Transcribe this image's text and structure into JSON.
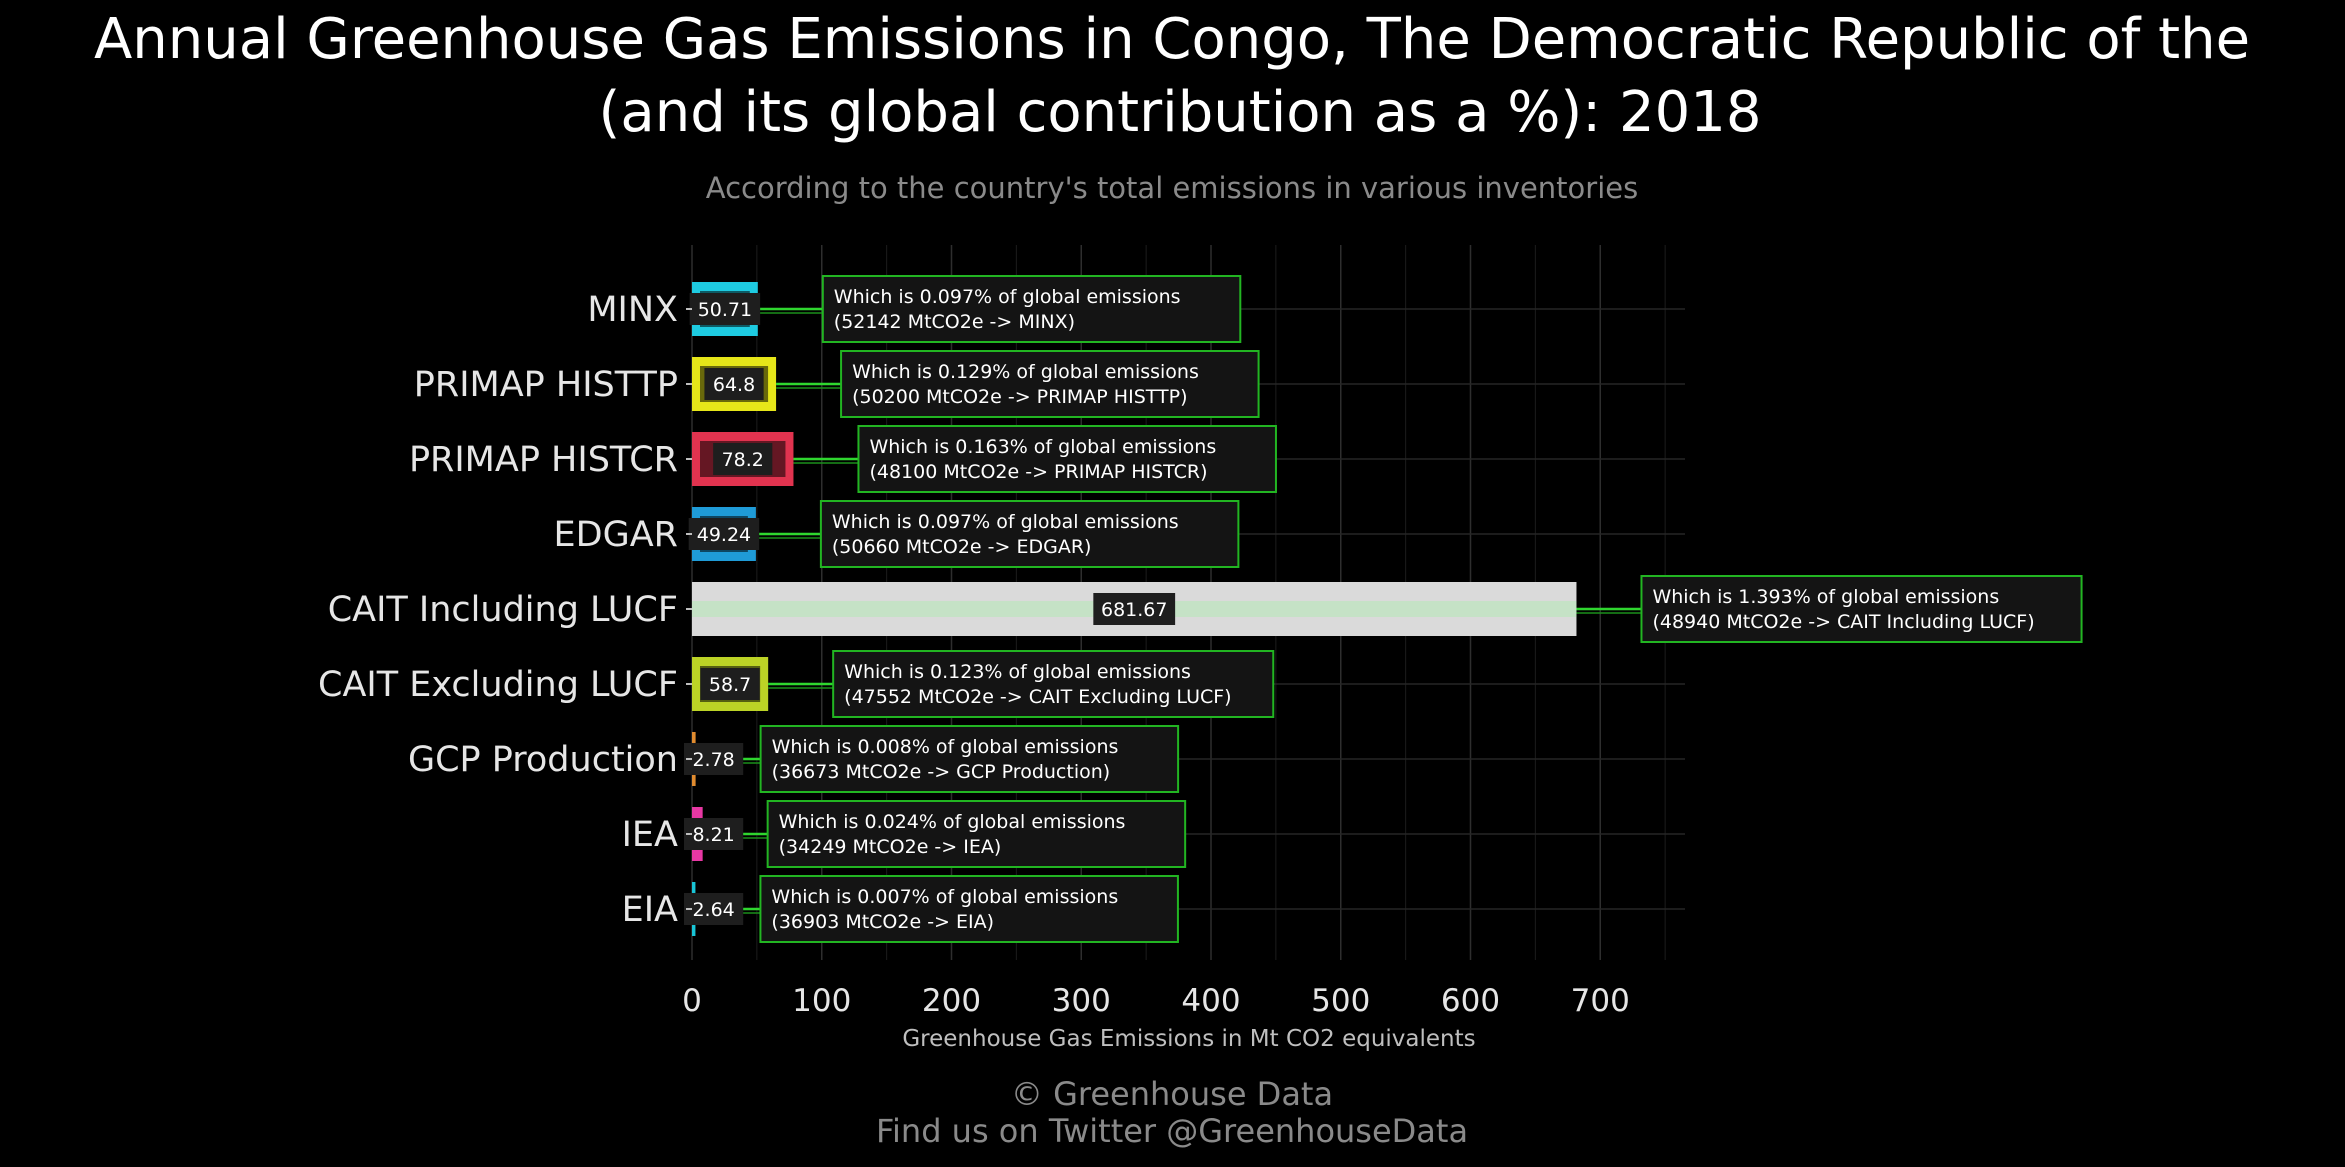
{
  "chart_data": {
    "type": "bar",
    "orientation": "horizontal",
    "title_lines": [
      "Annual Greenhouse Gas Emissions in Congo, The Democratic Republic of the",
      "(and its global contribution as a %): 2018"
    ],
    "subtitle": "According to the country's total emissions in various inventories",
    "xlabel": "Greenhouse Gas Emissions in Mt CO2 equivalents",
    "ylabel": "",
    "xlim": [
      0,
      765
    ],
    "xticks": [
      0,
      100,
      200,
      300,
      400,
      500,
      600,
      700
    ],
    "grid": true,
    "categories": [
      "MINX",
      "PRIMAP HISTTP",
      "PRIMAP HISTCR",
      "EDGAR",
      "CAIT Including LUCF",
      "CAIT Excluding LUCF",
      "GCP Production",
      "IEA",
      "EIA"
    ],
    "values": [
      50.71,
      64.8,
      78.2,
      49.24,
      681.67,
      58.7,
      2.78,
      8.21,
      2.64
    ],
    "value_labels": [
      "50.71",
      "64.8",
      "78.2",
      "49.24",
      "681.67",
      "58.7",
      "2.78",
      "8.21",
      "2.64"
    ],
    "colors": [
      "#1ecbe1",
      "#e6e619",
      "#e1334f",
      "#1f9bd7",
      "#dadada",
      "#bcd326",
      "#e08b2f",
      "#e838a4",
      "#19c5d6"
    ],
    "annotations": [
      {
        "line1": "Which is 0.097% of global emissions",
        "line2": "(52142 MtCO2e -> MINX)"
      },
      {
        "line1": "Which is 0.129% of global emissions",
        "line2": "(50200 MtCO2e -> PRIMAP HISTTP)"
      },
      {
        "line1": "Which is 0.163% of global emissions",
        "line2": "(48100 MtCO2e -> PRIMAP HISTCR)"
      },
      {
        "line1": "Which is 0.097% of global emissions",
        "line2": "(50660 MtCO2e -> EDGAR)"
      },
      {
        "line1": "Which is 1.393% of global emissions",
        "line2": "(48940 MtCO2e -> CAIT Including LUCF)"
      },
      {
        "line1": "Which is 0.123% of global emissions",
        "line2": "(47552 MtCO2e -> CAIT Excluding LUCF)"
      },
      {
        "line1": "Which is 0.008% of global emissions",
        "line2": "(36673 MtCO2e -> GCP Production)"
      },
      {
        "line1": "Which is 0.024% of global emissions",
        "line2": "(34249 MtCO2e -> IEA)"
      },
      {
        "line1": "Which is 0.007% of global emissions",
        "line2": "(36903 MtCO2e -> EIA)"
      }
    ]
  },
  "footer": {
    "line1": "© Greenhouse Data",
    "line2": "Find us on Twitter @GreenhouseData"
  },
  "colors": {
    "background": "#000000",
    "grid": "#2e2e2e",
    "annotation_border": "#22b522",
    "annotation_fill": "#141414",
    "connector": "#2fd62f",
    "value_label_bg": "#1e1e1e"
  }
}
